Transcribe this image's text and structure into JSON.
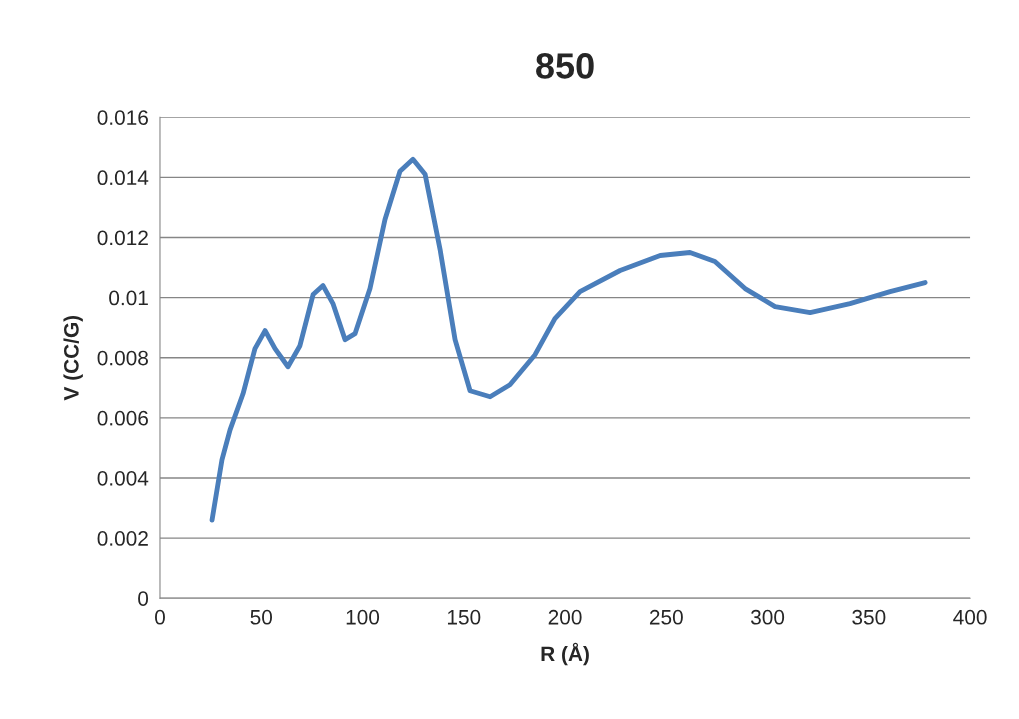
{
  "chart_data": {
    "type": "line",
    "title": "850",
    "xlabel": "R (Å)",
    "ylabel": "V (CC/G)",
    "x": [
      25.7,
      30.6,
      34.6,
      41,
      46.9,
      51.9,
      56.8,
      63.2,
      69.1,
      75.6,
      80.5,
      85.4,
      91.4,
      96.3,
      103.7,
      111.1,
      118.5,
      124.9,
      130.9,
      138.3,
      145.7,
      153.1,
      163,
      172.8,
      185.2,
      195,
      207.4,
      227.2,
      247,
      261.7,
      274,
      288.9,
      303.7,
      321,
      340.7,
      360.5,
      377.8
    ],
    "series": [
      {
        "color": "#4a7ebb",
        "values": [
          0.0026,
          0.0046,
          0.0056,
          0.0068,
          0.0083,
          0.0089,
          0.0083,
          0.0077,
          0.0084,
          0.0101,
          0.0104,
          0.0098,
          0.0086,
          0.0088,
          0.0103,
          0.0126,
          0.0142,
          0.0146,
          0.0141,
          0.0116,
          0.0086,
          0.0069,
          0.0067,
          0.0071,
          0.0081,
          0.0093,
          0.0102,
          0.0109,
          0.0114,
          0.0115,
          0.0112,
          0.0103,
          0.0097,
          0.0095,
          0.0098,
          0.0102,
          0.0105
        ]
      }
    ],
    "xlim": [
      0,
      400
    ],
    "xticks": [
      0,
      50,
      100,
      150,
      200,
      250,
      300,
      350,
      400
    ],
    "ylim": [
      0,
      0.016
    ],
    "yticks": [
      0,
      0.002,
      0.004,
      0.006,
      0.008,
      0.01,
      0.012,
      0.014,
      0.016
    ],
    "grid": "y",
    "legend": false,
    "marker": "none",
    "line_style": "solid"
  }
}
